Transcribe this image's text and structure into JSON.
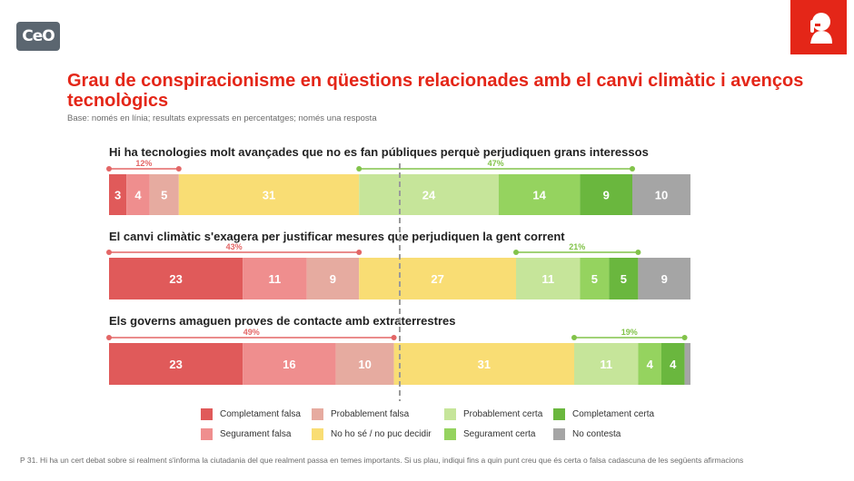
{
  "brand": {
    "logo_text": "CeO",
    "logo_icon": "ceo-logo-icon",
    "corner_icon": "person-shush-icon"
  },
  "header": {
    "title": "Grau de conspiracionisme en qüestions relacionades amb el canvi climàtic i avenços tecnològics",
    "subtitle": "Base: només en línia; resultats expressats en percentatges; només una resposta"
  },
  "colors": {
    "completament_falsa": "#e05a5a",
    "segurament_falsa": "#ef8e8e",
    "probablement_falsa": "#e6aba0",
    "no_ho_se": "#f9dd74",
    "probablement_certa": "#c6e59a",
    "segurament_certa": "#95d35f",
    "completament_certa": "#6ab73e",
    "no_contesta": "#a5a5a5",
    "false_bracket": "#e36666",
    "true_bracket": "#82c34a"
  },
  "chart_data": {
    "type": "bar",
    "orientation": "horizontal-stacked-100",
    "categories_order": [
      "Completament falsa",
      "Segurament falsa",
      "Probablement falsa",
      "No ho sé / no puc decidir",
      "Probablement certa",
      "Segurament certa",
      "Completament certa",
      "No contesta"
    ],
    "series_keys": [
      "completament_falsa",
      "segurament_falsa",
      "probablement_falsa",
      "no_ho_se",
      "probablement_certa",
      "segurament_certa",
      "completament_certa",
      "no_contesta"
    ],
    "rows": [
      {
        "question": "Hi ha tecnologies molt avançades que no es fan públiques perquè perjudiquen grans interessos",
        "values": [
          3,
          4,
          5,
          31,
          24,
          14,
          9,
          10
        ],
        "false_total": 12,
        "false_total_label": "12%",
        "true_total": 47,
        "true_total_label": "47%"
      },
      {
        "question": "El canvi climàtic s'exagera per justificar mesures que perjudiquen la gent corrent",
        "values": [
          23,
          11,
          9,
          27,
          11,
          5,
          5,
          9
        ],
        "false_total": 43,
        "false_total_label": "43%",
        "true_total": 21,
        "true_total_label": "21%"
      },
      {
        "question": "Els governs amaguen proves de contacte amb extraterrestres",
        "values": [
          23,
          16,
          10,
          31,
          11,
          4,
          4,
          1
        ],
        "false_total": 49,
        "false_total_label": "49%",
        "true_total": 19,
        "true_total_label": "19%"
      }
    ],
    "reference_line": 50,
    "xlim": [
      0,
      100
    ]
  },
  "legend": {
    "items": [
      {
        "label": "Completament falsa",
        "key": "completament_falsa"
      },
      {
        "label": "Probablement falsa",
        "key": "probablement_falsa"
      },
      {
        "label": "Probablement certa",
        "key": "probablement_certa"
      },
      {
        "label": "Completament certa",
        "key": "completament_certa"
      },
      {
        "label": "Segurament falsa",
        "key": "segurament_falsa"
      },
      {
        "label": "No ho sé / no puc decidir",
        "key": "no_ho_se"
      },
      {
        "label": "Segurament certa",
        "key": "segurament_certa"
      },
      {
        "label": "No contesta",
        "key": "no_contesta"
      }
    ]
  },
  "footnote": "P 31. Hi ha un cert debat sobre si realment s'informa la ciutadania del que realment passa en temes importants. Si us plau, indiqui fins a quin punt creu que és certa o falsa cadascuna de les següents afirmacions"
}
